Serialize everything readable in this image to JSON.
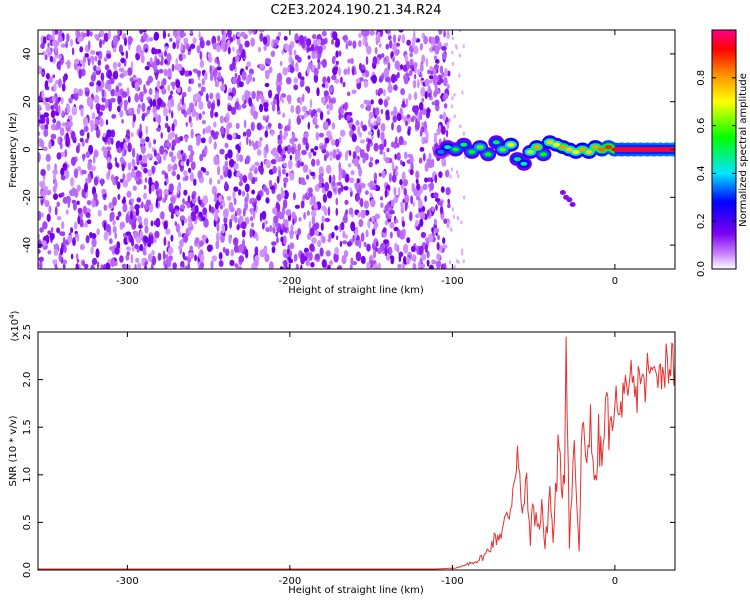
{
  "title": "C2E3.2024.190.21.34.R24",
  "chart_data": [
    {
      "type": "heatmap",
      "title": "C2E3.2024.190.21.34.R24",
      "xlabel": "Height of straight line (km)",
      "ylabel": "Frequency (Hz)",
      "xlim": [
        -355,
        37
      ],
      "ylim": [
        -50,
        50
      ],
      "xticks": [
        "-300",
        "-200",
        "-100",
        "0"
      ],
      "xtick_values": [
        -300,
        -200,
        -100,
        0
      ],
      "yticks": [
        "-40",
        "-20",
        "0",
        "20",
        "40"
      ],
      "ytick_values": [
        -40,
        -20,
        0,
        20,
        40
      ],
      "noise_region_x": [
        -355,
        -102
      ],
      "signal_track": [
        {
          "x": -107,
          "f": -1,
          "a": 0.35
        },
        {
          "x": -103,
          "f": 1,
          "a": 0.45
        },
        {
          "x": -98,
          "f": 0,
          "a": 0.55
        },
        {
          "x": -93,
          "f": 2,
          "a": 0.5
        },
        {
          "x": -88,
          "f": -1,
          "a": 0.55
        },
        {
          "x": -83,
          "f": 1,
          "a": 0.6
        },
        {
          "x": -78,
          "f": -2,
          "a": 0.55
        },
        {
          "x": -73,
          "f": 3,
          "a": 0.5
        },
        {
          "x": -69,
          "f": 0,
          "a": 0.6
        },
        {
          "x": -64,
          "f": 2,
          "a": 0.7
        },
        {
          "x": -60,
          "f": -4,
          "a": 0.5
        },
        {
          "x": -56,
          "f": -6,
          "a": 0.45
        },
        {
          "x": -52,
          "f": -1,
          "a": 0.65
        },
        {
          "x": -48,
          "f": 1,
          "a": 0.8
        },
        {
          "x": -44,
          "f": -2,
          "a": 0.55
        },
        {
          "x": -40,
          "f": 3,
          "a": 0.75
        },
        {
          "x": -36,
          "f": 2,
          "a": 0.7
        },
        {
          "x": -32,
          "f": 1,
          "a": 0.8
        },
        {
          "x": -28,
          "f": 0,
          "a": 0.75
        },
        {
          "x": -24,
          "f": -1,
          "a": 0.7
        },
        {
          "x": -20,
          "f": 0,
          "a": 0.8
        },
        {
          "x": -16,
          "f": -1,
          "a": 0.75
        },
        {
          "x": -12,
          "f": 1,
          "a": 0.8
        },
        {
          "x": -8,
          "f": 0,
          "a": 0.85
        },
        {
          "x": -4,
          "f": 1,
          "a": 0.9
        },
        {
          "x": 0,
          "f": 0,
          "a": 0.92
        },
        {
          "x": 4,
          "f": 0,
          "a": 0.95
        },
        {
          "x": 8,
          "f": 0,
          "a": 0.95
        },
        {
          "x": 12,
          "f": 0,
          "a": 0.96
        },
        {
          "x": 16,
          "f": 0,
          "a": 0.97
        },
        {
          "x": 20,
          "f": 0,
          "a": 0.98
        },
        {
          "x": 24,
          "f": 0,
          "a": 0.98
        },
        {
          "x": 28,
          "f": 0,
          "a": 0.99
        },
        {
          "x": 32,
          "f": 0,
          "a": 0.99
        },
        {
          "x": 36,
          "f": 0,
          "a": 1.0
        }
      ],
      "colorbar": {
        "label": "Normalized spectral amplitude",
        "range": [
          0,
          1
        ],
        "ticks": [
          "0.0",
          "0.2",
          "0.4",
          "0.6",
          "0.8"
        ],
        "tick_values": [
          0,
          0.2,
          0.4,
          0.6,
          0.8
        ],
        "colors": [
          "#ffffff",
          "#8800ff",
          "#0000ff",
          "#00ffff",
          "#00ff00",
          "#ffff00",
          "#ff8800",
          "#ff0000",
          "#ff0088"
        ]
      }
    },
    {
      "type": "line",
      "xlabel": "Height of straight line (km)",
      "ylabel": "SNR (10 * v/v)",
      "y_multiplier": "(x10^4)",
      "xlim": [
        -355,
        37
      ],
      "ylim": [
        0,
        2.5
      ],
      "xticks": [
        "-300",
        "-200",
        "-100",
        "0"
      ],
      "xtick_values": [
        -300,
        -200,
        -100,
        0
      ],
      "yticks": [
        "0.0",
        "0.5",
        "1.0",
        "1.5",
        "2.0",
        "2.5"
      ],
      "ytick_values": [
        0,
        0.5,
        1.0,
        1.5,
        2.0,
        2.5
      ],
      "color": "#e83030",
      "series": [
        {
          "x": [
            -355,
            -300,
            -200,
            -110,
            -100,
            -95,
            -90,
            -85,
            -80,
            -75,
            -70,
            -65,
            -62,
            -60,
            -57,
            -55,
            -52,
            -50,
            -47,
            -45,
            -43,
            -40,
            -38,
            -35,
            -33,
            -31,
            -30,
            -28,
            -25,
            -22,
            -20,
            -18,
            -15,
            -12,
            -10,
            -8,
            -5,
            -3,
            0,
            3,
            5,
            8,
            10,
            13,
            15,
            18,
            20,
            23,
            25,
            28,
            30,
            33,
            37
          ],
          "y": [
            0.01,
            0.01,
            0.01,
            0.01,
            0.02,
            0.03,
            0.06,
            0.1,
            0.15,
            0.3,
            0.4,
            0.6,
            1.0,
            1.28,
            0.5,
            0.95,
            0.35,
            0.7,
            0.4,
            0.75,
            0.2,
            0.85,
            0.3,
            1.25,
            0.9,
            1.05,
            2.55,
            0.3,
            1.3,
            0.2,
            1.6,
            1.0,
            1.65,
            0.8,
            1.4,
            1.1,
            1.8,
            1.35,
            1.9,
            1.5,
            2.0,
            1.6,
            2.05,
            1.75,
            2.15,
            1.85,
            2.1,
            2.0,
            2.25,
            2.05,
            2.15,
            2.2,
            2.15
          ]
        }
      ]
    }
  ]
}
